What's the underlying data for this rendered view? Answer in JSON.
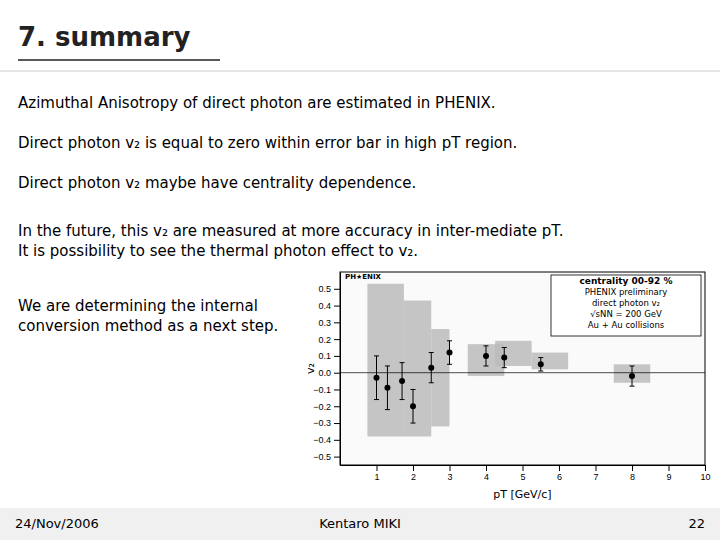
{
  "chart_data": {
    "type": "scatter",
    "title": "7. summary",
    "xlabel": "pT [GeV/c]",
    "ylabel": "v₂",
    "x": [
      1.0,
      1.3,
      1.7,
      2.0,
      2.5,
      3.0,
      4.0,
      4.5,
      5.5,
      8.0
    ],
    "values": [
      -0.03,
      -0.09,
      -0.05,
      -0.2,
      0.03,
      0.12,
      0.1,
      0.09,
      0.05,
      -0.02
    ],
    "errors": [
      0.13,
      0.13,
      0.11,
      0.1,
      0.09,
      0.07,
      0.06,
      0.06,
      0.04,
      0.06
    ],
    "bands": [
      [
        0.75,
        1.75,
        -0.38,
        0.53
      ],
      [
        1.75,
        2.5,
        -0.38,
        0.43
      ],
      [
        2.5,
        3.0,
        -0.32,
        0.26
      ],
      [
        3.5,
        4.5,
        -0.02,
        0.17
      ],
      [
        4.25,
        5.25,
        0.04,
        0.19
      ],
      [
        5.25,
        6.25,
        0.02,
        0.12
      ],
      [
        7.5,
        8.5,
        -0.06,
        0.05
      ]
    ],
    "color": "#000000",
    "xlim": [
      0,
      10
    ],
    "xticks": [
      1,
      2,
      3,
      4,
      5,
      6,
      7,
      8,
      9,
      10
    ],
    "ylim": [
      -0.55,
      0.6
    ],
    "yticks": [
      {
        "value": -0.5,
        "label": "−0.5"
      },
      {
        "value": -0.4,
        "label": "−0.4"
      },
      {
        "value": -0.3,
        "label": "−0.3"
      },
      {
        "value": -0.2,
        "label": "−0.2"
      },
      {
        "value": -0.1,
        "label": "−0.1"
      },
      {
        "value": 0,
        "label": "0.0"
      },
      0.1,
      0.2,
      0.3,
      0.4,
      0.5
    ],
    "grid": false,
    "annotations": [
      "PH★ENIX",
      "centrality 00-92 %",
      "PHENIX preliminary",
      "direct photon v₂",
      "√sNN = 200 GeV",
      "Au + Au collisions"
    ]
  },
  "slide": {
    "body": [
      "Azimuthal Anisotropy of direct photon are estimated in PHENIX.",
      "Direct photon v₂ is equal to zero within error bar in high pT region.",
      "Direct photon v₂ maybe have centrality dependence.",
      "In the future, this v₂ are measured at more accuracy in inter-mediate pT.",
      "It is possibility to see the thermal photon effect to v₂.",
      "We are determining the internal",
      "conversion method as a next step."
    ],
    "footer": [
      "24/Nov/2006",
      "Kentaro MIKI",
      "22"
    ]
  }
}
